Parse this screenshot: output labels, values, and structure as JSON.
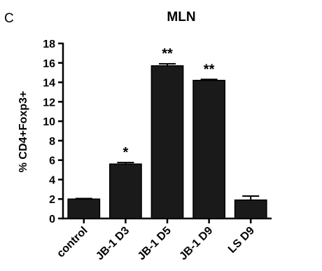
{
  "panel_label": "C",
  "chart_data": {
    "type": "bar",
    "title": "MLN",
    "xlabel": "",
    "ylabel": "% CD4+Foxp3+",
    "categories": [
      "control",
      "JB-1 D3",
      "JB-1 D5",
      "JB-1 D9",
      "LS D9"
    ],
    "values": [
      2.0,
      5.6,
      15.7,
      14.2,
      1.9
    ],
    "errors": [
      0.05,
      0.15,
      0.2,
      0.1,
      0.4
    ],
    "annotations": [
      "",
      "*",
      "**",
      "**",
      ""
    ],
    "ylim": [
      0,
      18
    ],
    "yticks": [
      0,
      2,
      4,
      6,
      8,
      10,
      12,
      14,
      16,
      18
    ],
    "ytick_labels": [
      "0",
      "2",
      "4",
      "6",
      "8",
      "10",
      "12",
      "14",
      "16",
      "18"
    ],
    "grid": false,
    "bar_color": "#1a1a1a"
  }
}
